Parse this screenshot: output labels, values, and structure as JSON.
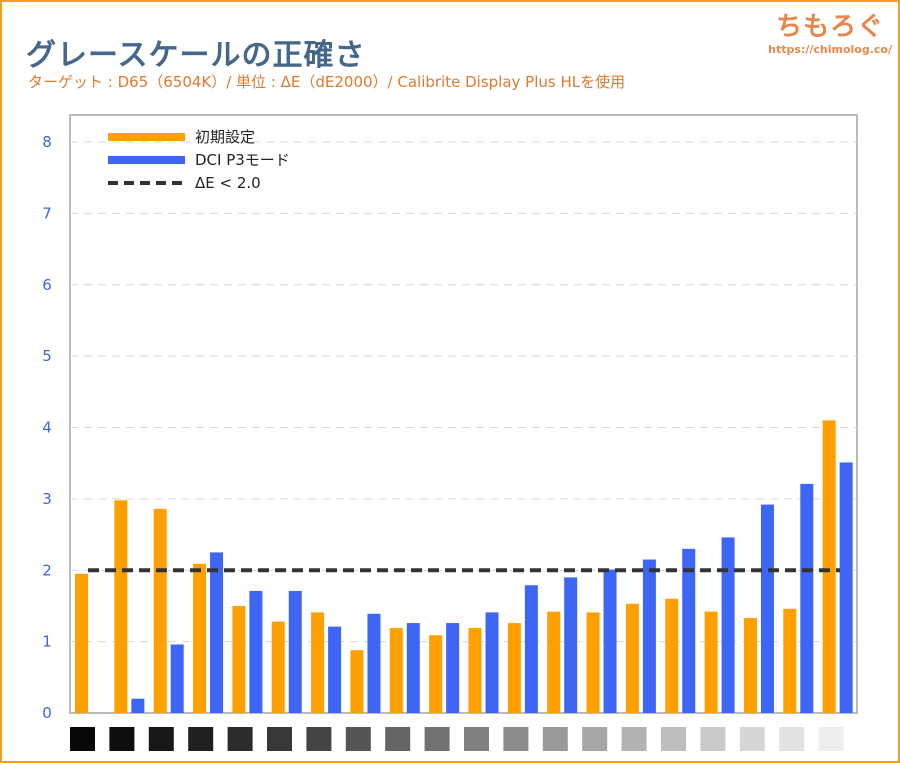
{
  "header": {
    "title": "グレースケールの正確さ",
    "subtitle": "ターゲット : D65（6504K）/ 単位 : ΔE（dE2000）/ Calibrite Display Plus HLを使用",
    "logo_text": "ちもろぐ",
    "logo_url": "https://chimolog.co/"
  },
  "chart_data": {
    "type": "bar",
    "title": "グレースケールの正確さ",
    "ylim": [
      0,
      8
    ],
    "yticks": [
      "0",
      "1",
      "2",
      "3",
      "4",
      "5",
      "6",
      "7",
      "8"
    ],
    "grid": true,
    "legend_placement": "top-left",
    "categories_shown_as": "gray-swatches",
    "gray_levels": [
      "#080808",
      "#0e0e0e",
      "#181818",
      "#202020",
      "#2c2c2c",
      "#383838",
      "#444444",
      "#555555",
      "#646464",
      "#727272",
      "#808080",
      "#8c8c8c",
      "#999999",
      "#a6a6a6",
      "#b2b2b2",
      "#bebebe",
      "#cacaca",
      "#d6d6d6",
      "#e2e2e2",
      "#eeeeee"
    ],
    "series": [
      {
        "name": "初期設定",
        "color": "#ffa000",
        "values": [
          1.95,
          2.98,
          2.86,
          2.09,
          1.5,
          1.28,
          1.41,
          0.88,
          1.19,
          1.09,
          1.19,
          1.26,
          1.42,
          1.41,
          1.53,
          1.6,
          1.42,
          1.33,
          1.46,
          4.1
        ]
      },
      {
        "name": "DCI P3モード",
        "color": "#3d66f5",
        "values": [
          0,
          0.2,
          0.96,
          2.25,
          1.71,
          1.71,
          1.21,
          1.39,
          1.26,
          1.26,
          1.41,
          1.79,
          1.9,
          2.01,
          2.15,
          2.3,
          2.46,
          2.92,
          3.21,
          3.51
        ]
      }
    ],
    "reference_line": {
      "name": "ΔE < 2.0",
      "value": 2.0,
      "color": "#333333"
    }
  }
}
